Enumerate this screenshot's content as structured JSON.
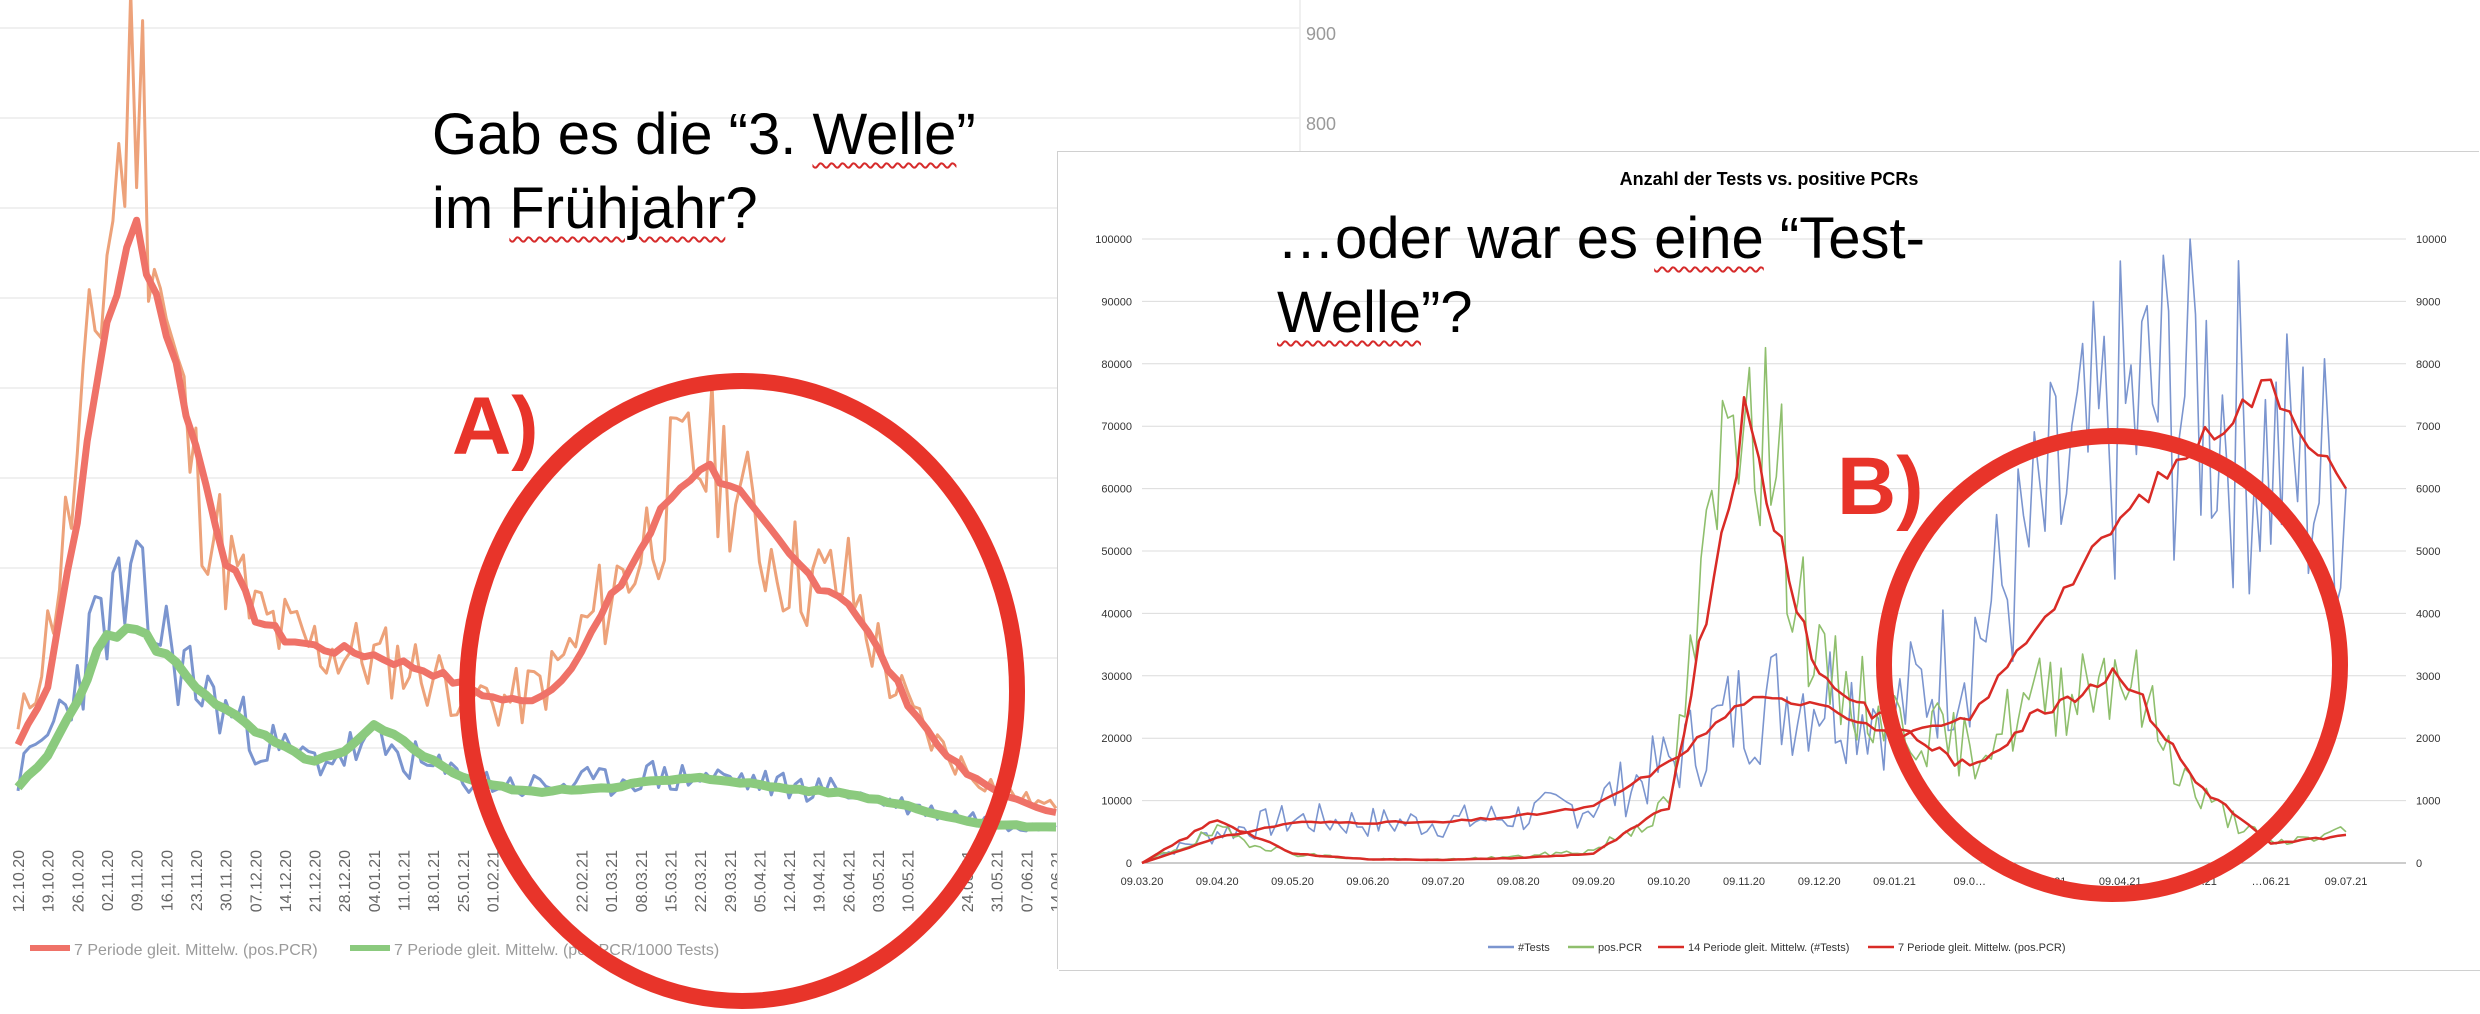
{
  "headline_a": {
    "line1_pre": "Gab es die “3. ",
    "line1_sq": "Welle",
    "line1_post": "”",
    "line2_pre": "im ",
    "line2_sq": "Frühjahr",
    "line2_post": "?"
  },
  "headline_b": {
    "line1_pre": "…oder war es ",
    "line1_sq": "eine",
    "line1_post": " “Test-",
    "line2_sq": "Welle",
    "line2_post": "”?"
  },
  "labels": {
    "a": "A)",
    "b": "B)"
  },
  "colors": {
    "annotation": "#e8342a",
    "tests": "#7b95cf",
    "pos_pcr": "#8fbf6d",
    "ma_red": "#d92b26",
    "orange_raw": "#eda27a",
    "salmon_ma": "#ef7268",
    "green_ma": "#8bca7e",
    "blue_raw": "#7b95cf"
  },
  "chart_data": [
    {
      "type": "line",
      "title": "",
      "yaxis_right": {
        "visible_ticks": [
          900,
          800
        ]
      },
      "x": [
        "12.10.20",
        "19.10.20",
        "26.10.20",
        "02.11.20",
        "09.11.20",
        "16.11.20",
        "23.11.20",
        "30.11.20",
        "07.12.20",
        "14.12.20",
        "21.12.20",
        "28.12.20",
        "04.01.21",
        "11.01.21",
        "18.01.21",
        "25.01.21",
        "01.02.21",
        "08.02.21",
        "15.02.21",
        "22.02.21",
        "01.03.21",
        "08.03.21",
        "15.03.21",
        "22.03.21",
        "29.03.21",
        "05.04.21",
        "12.04.21",
        "19.04.21",
        "26.04.21",
        "03.05.21",
        "10.05.21",
        "17.05.21",
        "24.05.21",
        "31.05.21",
        "07.06.21",
        "14.06.21"
      ],
      "x_display": [
        "12.10.20",
        "19.10.20",
        "26.10.20",
        "02.11.20",
        "09.11.20",
        "16.11.20",
        "23.11.20",
        "30.11.20",
        "07.12.20",
        "14.12.20",
        "21.12.20",
        "28.12.20",
        "04.01.21",
        "11.01.21",
        "18.01.21",
        "25.01.21",
        "01.02.21",
        "",
        "",
        "22.02.21",
        "01.03.21",
        "08.03.21",
        "15.03.21",
        "22.03.21",
        "29.03.21",
        "05.04.21",
        "12.04.21",
        "19.04.21",
        "26.04.21",
        "03.05.21",
        "10.05.21",
        "",
        "24.05.21",
        "31.05.21",
        "07.06.21",
        "14.06.21"
      ],
      "series": [
        {
          "name": "",
          "color": "orange_raw",
          "values": [
            120,
            240,
            430,
            700,
            920,
            600,
            420,
            330,
            260,
            240,
            225,
            220,
            210,
            205,
            190,
            175,
            160,
            165,
            190,
            240,
            290,
            340,
            410,
            450,
            430,
            350,
            320,
            300,
            300,
            220,
            150,
            110,
            80,
            60,
            45,
            35
          ]
        },
        {
          "name": "7 Periode gleit. Mittelw. (pos.PCR)",
          "color": "salmon_ma",
          "values": [
            110,
            180,
            380,
            610,
            720,
            600,
            460,
            330,
            260,
            235,
            225,
            220,
            215,
            205,
            195,
            180,
            165,
            160,
            175,
            220,
            280,
            340,
            400,
            440,
            420,
            370,
            330,
            300,
            280,
            220,
            160,
            110,
            75,
            55,
            40,
            30
          ]
        },
        {
          "name": "",
          "color": "blue_raw",
          "values": [
            70,
            120,
            190,
            270,
            280,
            230,
            180,
            150,
            120,
            100,
            90,
            100,
            110,
            95,
            80,
            70,
            65,
            60,
            62,
            65,
            65,
            75,
            70,
            72,
            70,
            65,
            60,
            58,
            55,
            45,
            38,
            30,
            25,
            20,
            18,
            15
          ]
        },
        {
          "name": "7 Periode gleit. Mittelw. (pos.PCR/1000 Tests)",
          "color": "green_ma",
          "values": [
            60,
            95,
            165,
            240,
            245,
            215,
            180,
            150,
            125,
            105,
            90,
            100,
            130,
            115,
            90,
            72,
            62,
            55,
            55,
            58,
            60,
            65,
            68,
            70,
            68,
            62,
            58,
            55,
            52,
            45,
            38,
            28,
            20,
            16,
            14,
            13
          ]
        }
      ]
    },
    {
      "type": "line",
      "title": "Anzahl der Tests vs. positive PCRs",
      "ylim": [
        0,
        100000
      ],
      "yticks": [
        0,
        10000,
        20000,
        30000,
        40000,
        50000,
        60000,
        70000,
        80000,
        90000,
        100000
      ],
      "y2lim": [
        0,
        10000
      ],
      "y2ticks": [
        0,
        1000,
        2000,
        3000,
        4000,
        5000,
        6000,
        7000,
        8000,
        9000,
        10000
      ],
      "legend_position": "bottom",
      "x": [
        "09.03.20",
        "09.04.20",
        "09.05.20",
        "09.06.20",
        "09.07.20",
        "09.08.20",
        "09.09.20",
        "09.10.20",
        "09.11.20",
        "09.12.20",
        "09.01.21",
        "09.02.21",
        "09.03.21",
        "09.04.21",
        "09.05.21",
        "09.06.21",
        "09.07.21"
      ],
      "x_display": [
        "09.03.20",
        "09.04.20",
        "09.05.20",
        "09.06.20",
        "09.07.20",
        "09.08.20",
        "09.09.20",
        "09.10.20",
        "09.11.20",
        "09.12.20",
        "09.01.21",
        "09.0…",
        "09.03.21",
        "09.04.21",
        "09.05.21",
        "…06.21",
        "09.07.21"
      ],
      "series": [
        {
          "name": "#Tests",
          "axis": "left",
          "color": "tests",
          "values": [
            0,
            5000,
            7000,
            6500,
            6500,
            7500,
            9500,
            16000,
            25000,
            28000,
            24000,
            35000,
            55000,
            70000,
            78000,
            65000,
            60000
          ]
        },
        {
          "name": "pos.PCR",
          "axis": "right",
          "color": "pos_pcr",
          "values": [
            0,
            500,
            150,
            60,
            50,
            100,
            200,
            900,
            8500,
            3000,
            2300,
            1800,
            2700,
            3200,
            1100,
            300,
            500
          ]
        },
        {
          "name": "14 Periode gleit. Mittelw. (#Tests)",
          "axis": "left",
          "color": "ma_red",
          "values": [
            0,
            4000,
            6500,
            6500,
            6500,
            7500,
            9000,
            16000,
            26000,
            26000,
            20000,
            23000,
            40000,
            55000,
            67000,
            77000,
            60000
          ]
        },
        {
          "name": "7 Periode gleit. Mittelw. (pos.PCR)",
          "axis": "right",
          "color": "ma_red",
          "values": [
            0,
            700,
            150,
            60,
            50,
            80,
            150,
            900,
            7200,
            3000,
            2200,
            1500,
            2500,
            3100,
            1300,
            300,
            450
          ]
        }
      ]
    }
  ]
}
